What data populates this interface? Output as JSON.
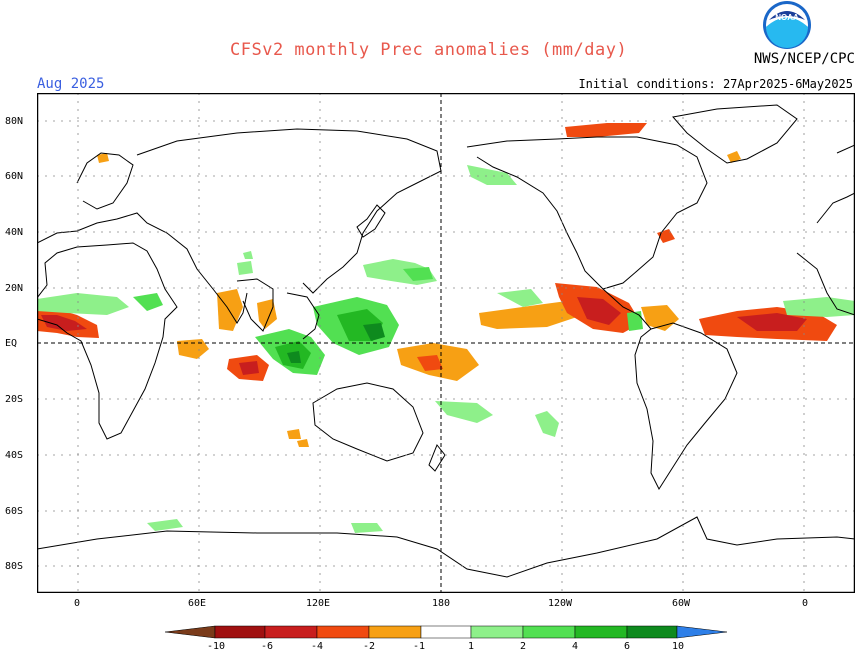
{
  "header": {
    "title": "CFSv2 monthly Prec anomalies (mm/day)",
    "month": "Aug 2025",
    "org": "NWS/NCEP/CPC",
    "initial_conditions": "Initial conditions: 27Apr2025-6May2025",
    "logo_text": "NOAA",
    "logo_icon": "noaa-logo-icon"
  },
  "axes": {
    "lat_labels": [
      "80N",
      "60N",
      "40N",
      "20N",
      "EQ",
      "20S",
      "40S",
      "60S",
      "80S"
    ],
    "lon_labels": [
      "0",
      "60E",
      "120E",
      "180",
      "120W",
      "60W",
      "0"
    ]
  },
  "colorbar": {
    "ticks": [
      "-10",
      "-6",
      "-4",
      "-2",
      "-1",
      "1",
      "2",
      "4",
      "6",
      "10"
    ],
    "colors": {
      "lt_m10": "#7a3b1a",
      "m10_m6": "#a01010",
      "m6_m4": "#c81e1e",
      "m4_m2": "#f04a10",
      "m2_m1": "#f7a014",
      "m1_1": "#ffffff",
      "p1_p2": "#8ef08a",
      "p2_p4": "#52e052",
      "p4_p6": "#23b823",
      "p6_p10": "#0e8a1e",
      "gt_p10": "#2e7fe8"
    }
  }
}
